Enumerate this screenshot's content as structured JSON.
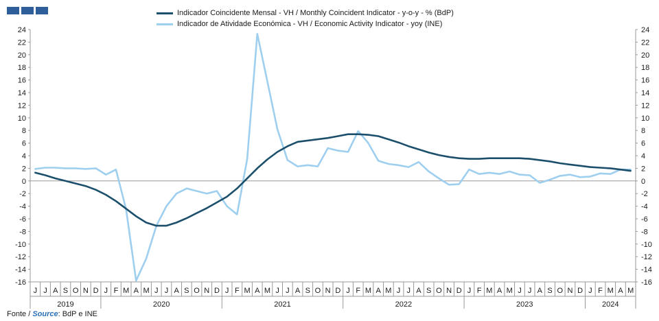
{
  "legend": {
    "series1": "Indicador Coincidente Mensal - VH / Monthly Coincident Indicator - y-o-y - % (BdP)",
    "series2": "Indicador de Atividade Económica - VH / Economic Activity Indicator - yoy (INE)"
  },
  "source": {
    "pt": "Fonte",
    "sep": " / ",
    "en": "Source",
    "rest": ": BdP e INE"
  },
  "colors": {
    "series1": "#1b4f6b",
    "series2": "#9fcfef",
    "brand": "#2f5f9a",
    "axis": "#999999"
  },
  "chart_data": {
    "type": "line",
    "ylim": [
      -16,
      24
    ],
    "yticks": [
      -16,
      -14,
      -12,
      -10,
      -8,
      -6,
      -4,
      -2,
      0,
      2,
      4,
      6,
      8,
      10,
      12,
      14,
      16,
      18,
      20,
      22,
      24
    ],
    "grid": false,
    "legend_position": "top",
    "month_labels": [
      "J",
      "J",
      "A",
      "S",
      "O",
      "N",
      "D",
      "J",
      "F",
      "M",
      "A",
      "M",
      "J",
      "J",
      "A",
      "S",
      "O",
      "N",
      "D",
      "J",
      "F",
      "M",
      "A",
      "M",
      "J",
      "J",
      "A",
      "S",
      "O",
      "N",
      "D",
      "J",
      "F",
      "M",
      "A",
      "M",
      "J",
      "J",
      "A",
      "S",
      "O",
      "N",
      "D",
      "J",
      "F",
      "M",
      "A",
      "M",
      "J",
      "J",
      "A",
      "S",
      "O",
      "N",
      "D",
      "J",
      "F",
      "M",
      "A",
      "M"
    ],
    "years": [
      {
        "label": "2019",
        "start": 0,
        "end": 6
      },
      {
        "label": "2020",
        "start": 7,
        "end": 18
      },
      {
        "label": "2021",
        "start": 19,
        "end": 30
      },
      {
        "label": "2022",
        "start": 31,
        "end": 42
      },
      {
        "label": "2023",
        "start": 43,
        "end": 54
      },
      {
        "label": "2024",
        "start": 55,
        "end": 59
      }
    ],
    "series": [
      {
        "name": "Indicador Coincidente Mensal - VH / Monthly Coincident Indicator - y-o-y - % (BdP)",
        "values": [
          1.3,
          0.9,
          0.4,
          0.0,
          -0.4,
          -0.8,
          -1.4,
          -2.2,
          -3.2,
          -4.4,
          -5.6,
          -6.6,
          -7.1,
          -7.1,
          -6.6,
          -5.9,
          -5.1,
          -4.3,
          -3.4,
          -2.5,
          -1.2,
          0.4,
          2.0,
          3.4,
          4.6,
          5.5,
          6.2,
          6.4,
          6.6,
          6.8,
          7.1,
          7.4,
          7.4,
          7.3,
          7.1,
          6.6,
          6.1,
          5.5,
          5.0,
          4.5,
          4.1,
          3.8,
          3.6,
          3.5,
          3.5,
          3.6,
          3.6,
          3.6,
          3.6,
          3.5,
          3.3,
          3.1,
          2.8,
          2.6,
          2.4,
          2.2,
          2.1,
          2.0,
          1.8,
          1.6
        ]
      },
      {
        "name": "Indicador de Atividade Económica - VH / Economic Activity Indicator - yoy (INE)",
        "values": [
          1.9,
          2.1,
          2.1,
          2.0,
          2.0,
          1.9,
          2.0,
          1.0,
          1.8,
          -4.5,
          -15.8,
          -12.3,
          -7.1,
          -4.0,
          -2.0,
          -1.2,
          -1.6,
          -2.0,
          -1.6,
          -4.0,
          -5.3,
          3.5,
          23.3,
          15.8,
          8.2,
          3.3,
          2.3,
          2.5,
          2.3,
          5.2,
          4.8,
          4.6,
          7.9,
          6.0,
          3.2,
          2.7,
          2.5,
          2.2,
          3.0,
          1.5,
          0.4,
          -0.6,
          -0.5,
          1.8,
          1.1,
          1.3,
          1.1,
          1.5,
          1.0,
          0.9,
          -0.3,
          0.2,
          0.8,
          1.0,
          0.6,
          0.7,
          1.2,
          1.1,
          1.8,
          1.8
        ]
      }
    ]
  }
}
